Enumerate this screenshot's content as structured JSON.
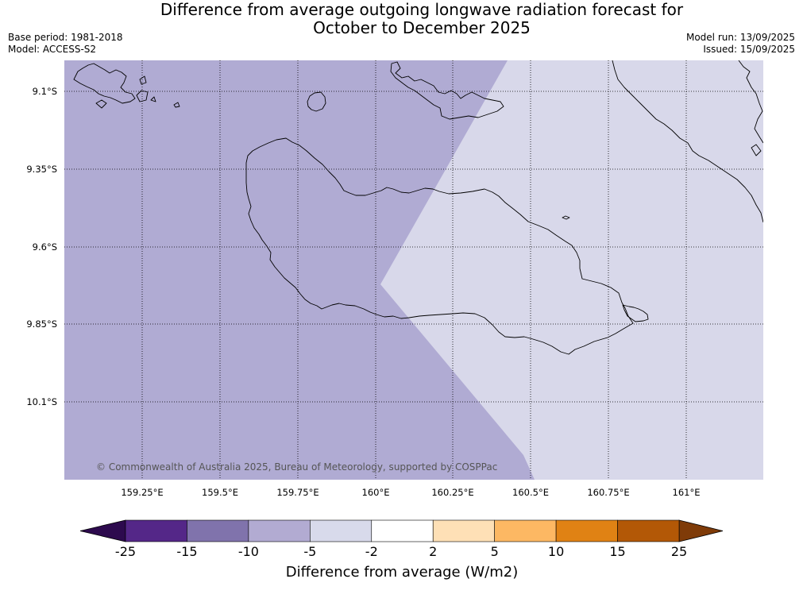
{
  "title": {
    "line1": "Difference from average outgoing longwave radiation forecast for",
    "line2": "October to December 2025"
  },
  "meta": {
    "base_period": "Base period: 1981-2018",
    "model": "Model: ACCESS-S2",
    "model_run": "Model run: 13/09/2025",
    "issued": "Issued: 15/09/2025"
  },
  "map": {
    "lat_ticks": [
      "9.1°S",
      "9.35°S",
      "9.6°S",
      "9.85°S",
      "10.1°S"
    ],
    "lon_ticks": [
      "159.25°E",
      "159.5°E",
      "159.75°E",
      "160°E",
      "160.25°E",
      "160.5°E",
      "160.75°E",
      "161°E"
    ],
    "copyright": "© Commonwealth of Australia 2025, Bureau of Meteorology, supported by COSPPac",
    "region_colors": {
      "minus10_to_minus5": "#b0abd3",
      "minus5_to_minus2": "#d8d8ea"
    },
    "coastline_color": "#000000",
    "gridline_style": "dotted"
  },
  "colorbar": {
    "label": "Difference from average (W/m2)",
    "tick_labels": [
      "-25",
      "-15",
      "-10",
      "-5",
      "-2",
      "2",
      "5",
      "10",
      "15",
      "25"
    ],
    "low_extend_color": "#2d0a4e",
    "high_extend_color": "#7f3b08",
    "bins": [
      {
        "from": "-25",
        "to": "-15",
        "color": "#542788"
      },
      {
        "from": "-15",
        "to": "-10",
        "color": "#8073ac"
      },
      {
        "from": "-10",
        "to": "-5",
        "color": "#b2abd2"
      },
      {
        "from": "-5",
        "to": "-2",
        "color": "#d8daeb"
      },
      {
        "from": "-2",
        "to": "2",
        "color": "#ffffff"
      },
      {
        "from": "2",
        "to": "5",
        "color": "#fee0b6"
      },
      {
        "from": "5",
        "to": "10",
        "color": "#fdb863"
      },
      {
        "from": "10",
        "to": "15",
        "color": "#e08214"
      },
      {
        "from": "15",
        "to": "25",
        "color": "#b35806"
      }
    ]
  }
}
